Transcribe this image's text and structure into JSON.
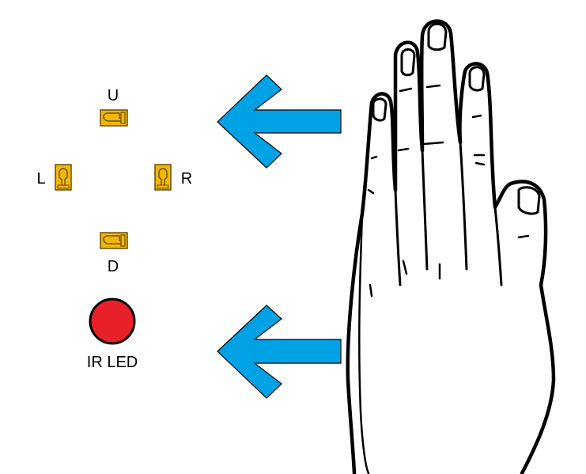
{
  "sensors": {
    "up_label": "U",
    "left_label": "L",
    "right_label": "R",
    "down_label": "D"
  },
  "ir_led": {
    "label": "IR LED"
  },
  "colors": {
    "arrow": "#00A2E6",
    "sensor_fill": "#F2B705",
    "sensor_outline": "#6B4F00",
    "led_fill": "#E8202A",
    "outline": "#000000"
  },
  "icons": [
    "arrow-left-icon",
    "photodiode-icon",
    "led-icon",
    "hand-icon"
  ]
}
